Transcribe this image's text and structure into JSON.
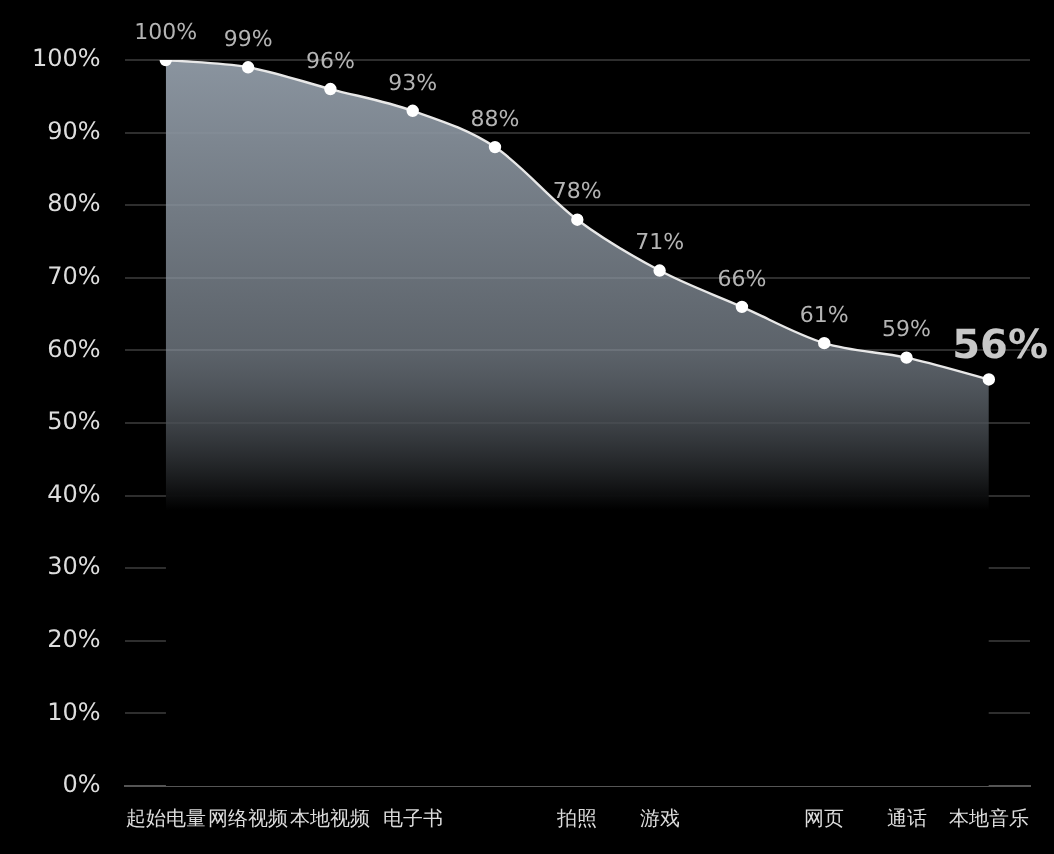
{
  "chart_data": {
    "type": "area",
    "categories": [
      "起始电量",
      "网络视频",
      "本地视频",
      "电子书",
      null,
      "拍照",
      "游戏",
      null,
      "网页",
      "通话",
      "本地音乐"
    ],
    "series": [
      {
        "color": "#8a949f",
        "values": [
          100,
          99,
          96,
          93,
          88,
          78,
          71,
          66,
          61,
          59,
          56
        ],
        "value_labels": [
          "100%",
          "99%",
          "96%",
          "93%",
          "88%",
          "78%",
          "71%",
          "66%",
          "61%",
          "59%",
          "56%"
        ]
      }
    ],
    "ylim": [
      0,
      100
    ],
    "yticks": [
      {
        "value": 0,
        "label": "0%"
      },
      {
        "value": 10,
        "label": "10%"
      },
      {
        "value": 20,
        "label": "20%"
      },
      {
        "value": 30,
        "label": "30%"
      },
      {
        "value": 40,
        "label": "40%"
      },
      {
        "value": 50,
        "label": "50%"
      },
      {
        "value": 60,
        "label": "60%"
      },
      {
        "value": 70,
        "label": "70%"
      },
      {
        "value": 80,
        "label": "80%"
      },
      {
        "value": 90,
        "label": "90%"
      },
      {
        "value": 100,
        "label": "100%"
      }
    ],
    "grid": "y",
    "legend": false,
    "marker": "circle"
  }
}
